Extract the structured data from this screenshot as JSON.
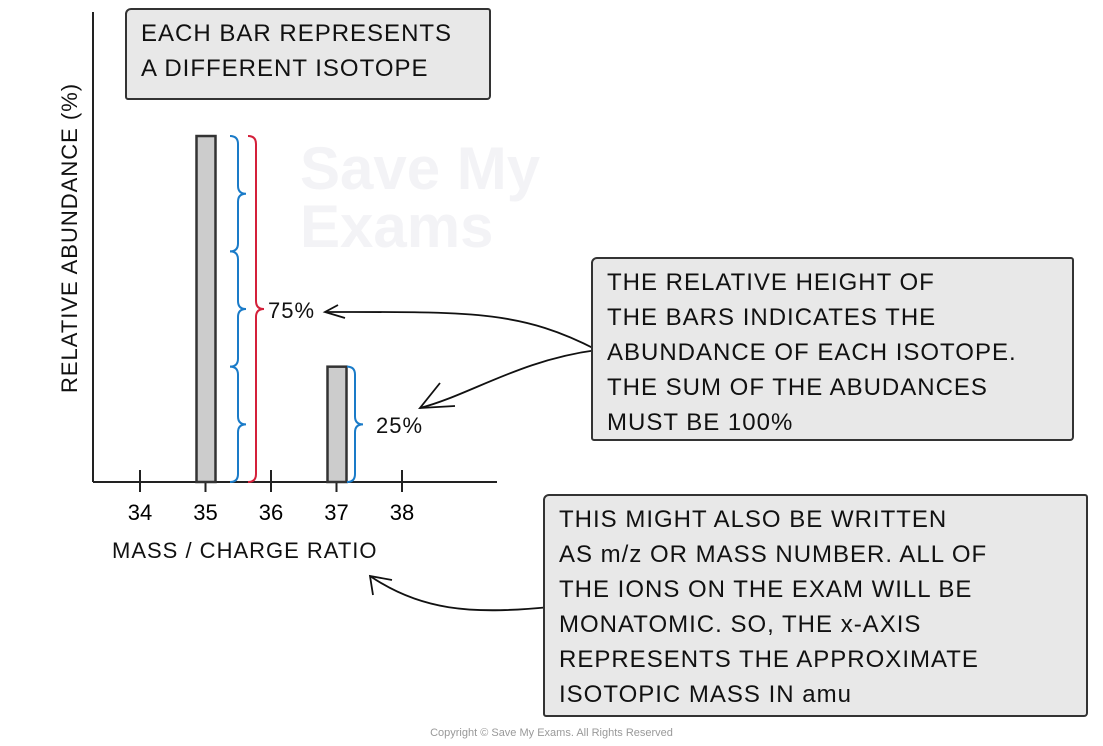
{
  "watermark": {
    "line1": "Save My",
    "line2": "Exams"
  },
  "chart_data": {
    "type": "bar",
    "xlabel": "MASS / CHARGE RATIO",
    "ylabel": "RELATIVE ABUNDANCE (%)",
    "x_ticks": [
      "34",
      "35",
      "36",
      "37",
      "38"
    ],
    "categories": [
      35,
      37
    ],
    "values": [
      75,
      25
    ],
    "ylim": [
      0,
      100
    ],
    "bar_color": "#cccccc",
    "annotations": {
      "big": "75%",
      "small": "25%",
      "brace_color": "#1a7bc8",
      "total_brace_color": "#d4203a"
    }
  },
  "callouts": {
    "top": "EACH BAR REPRESENTS\nA DIFFERENT ISOTOPE",
    "right": "THE RELATIVE HEIGHT OF\nTHE BARS INDICATES THE\nABUNDANCE OF EACH ISOTOPE.\nTHE SUM OF THE ABUDANCES\nMUST BE 100%",
    "bottom": "THIS MIGHT ALSO BE WRITTEN\nAS m/z OR MASS NUMBER. ALL OF\nTHE IONS ON THE EXAM WILL BE\nMONATOMIC. SO, THE x-AXIS\nREPRESENTS THE APPROXIMATE\nISOTOPIC MASS IN amu"
  },
  "copyright": "Copyright © Save My Exams. All Rights Reserved"
}
